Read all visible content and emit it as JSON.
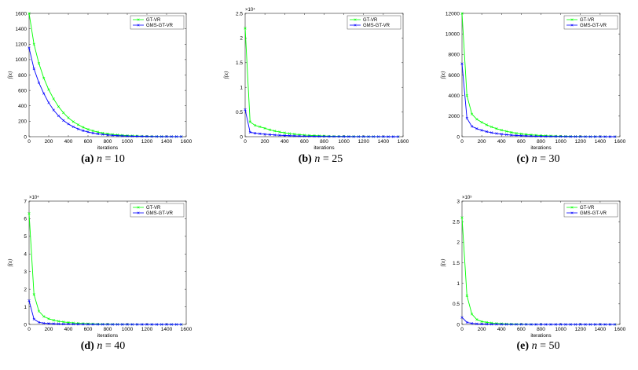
{
  "chart_data": [
    {
      "type": "line",
      "caption": {
        "tag": "(a)",
        "text": "n = 10"
      },
      "xlabel": "iterations",
      "ylabel": "f(x)",
      "xlim": [
        0,
        1600
      ],
      "ylim": [
        0,
        1600
      ],
      "y_exponent": "",
      "xticks": [
        0,
        200,
        400,
        600,
        800,
        1000,
        1200,
        1400,
        1600
      ],
      "yticks": [
        0,
        200,
        400,
        600,
        800,
        1000,
        1200,
        1400,
        1600
      ],
      "legend": "top-right",
      "series": [
        {
          "name": "GT-VR",
          "color": "#00ff00",
          "marker": "x",
          "x": [
            0,
            50,
            100,
            150,
            200,
            250,
            300,
            350,
            400,
            450,
            500,
            550,
            600,
            650,
            700,
            750,
            800,
            850,
            900,
            950,
            1000,
            1050,
            1100,
            1150,
            1200,
            1250,
            1300,
            1350,
            1400,
            1450,
            1500,
            1550
          ],
          "y": [
            1600,
            1200,
            950,
            760,
            610,
            490,
            390,
            310,
            245,
            195,
            155,
            122,
            96,
            76,
            60,
            47,
            37,
            29,
            23,
            18,
            14,
            11,
            9,
            7,
            5,
            4,
            3,
            3,
            2,
            2,
            1,
            1
          ]
        },
        {
          "name": "GMS-GT-VR",
          "color": "#0000ff",
          "marker": "x",
          "x": [
            0,
            50,
            100,
            150,
            200,
            250,
            300,
            350,
            400,
            450,
            500,
            550,
            600,
            650,
            700,
            750,
            800,
            850,
            900,
            950,
            1000,
            1050,
            1100,
            1150,
            1200,
            1250,
            1300,
            1350,
            1400,
            1450,
            1500,
            1550
          ],
          "y": [
            1150,
            880,
            700,
            560,
            440,
            345,
            270,
            210,
            165,
            128,
            100,
            78,
            61,
            47,
            37,
            29,
            22,
            17,
            13,
            10,
            8,
            6,
            5,
            4,
            3,
            2,
            2,
            1,
            1,
            1,
            1,
            1
          ]
        }
      ]
    },
    {
      "type": "line",
      "caption": {
        "tag": "(b)",
        "text": "n = 25"
      },
      "xlabel": "iterations",
      "ylabel": "f(x)",
      "xlim": [
        0,
        1600
      ],
      "ylim": [
        0,
        2.5
      ],
      "y_exponent": "×10⁴",
      "xticks": [
        0,
        200,
        400,
        600,
        800,
        1000,
        1200,
        1400,
        1600
      ],
      "yticks": [
        0,
        0.5,
        1,
        1.5,
        2,
        2.5
      ],
      "legend": "top-right",
      "series": [
        {
          "name": "GT-VR",
          "color": "#00ff00",
          "marker": "x",
          "x": [
            0,
            50,
            100,
            150,
            200,
            250,
            300,
            350,
            400,
            450,
            500,
            550,
            600,
            650,
            700,
            750,
            800,
            850,
            900,
            950,
            1000,
            1050,
            1100,
            1150,
            1200,
            1250,
            1300,
            1350,
            1400,
            1450,
            1500,
            1550
          ],
          "y": [
            2.2,
            0.3,
            0.23,
            0.2,
            0.17,
            0.14,
            0.115,
            0.095,
            0.078,
            0.063,
            0.051,
            0.041,
            0.033,
            0.027,
            0.022,
            0.018,
            0.014,
            0.011,
            0.009,
            0.007,
            0.006,
            0.005,
            0.004,
            0.003,
            0.002,
            0.002,
            0.002,
            0.001,
            0.001,
            0.001,
            0.001,
            0.001
          ]
        },
        {
          "name": "GMS-GT-VR",
          "color": "#0000ff",
          "marker": "x",
          "x": [
            0,
            50,
            100,
            150,
            200,
            250,
            300,
            350,
            400,
            450,
            500,
            550,
            600,
            650,
            700,
            750,
            800,
            850,
            900,
            950,
            1000,
            1050,
            1100,
            1150,
            1200,
            1250,
            1300,
            1350,
            1400,
            1450,
            1500,
            1550
          ],
          "y": [
            0.55,
            0.09,
            0.07,
            0.06,
            0.05,
            0.042,
            0.035,
            0.029,
            0.024,
            0.02,
            0.016,
            0.013,
            0.011,
            0.009,
            0.007,
            0.006,
            0.005,
            0.004,
            0.003,
            0.003,
            0.002,
            0.002,
            0.001,
            0.001,
            0.001,
            0.001,
            0.001,
            0.001,
            0.001,
            0,
            0,
            0
          ]
        }
      ]
    },
    {
      "type": "line",
      "caption": {
        "tag": "(c)",
        "text": "n = 30"
      },
      "xlabel": "iterations",
      "ylabel": "f(x)",
      "xlim": [
        0,
        1600
      ],
      "ylim": [
        0,
        12000
      ],
      "y_exponent": "",
      "xticks": [
        0,
        200,
        400,
        600,
        800,
        1000,
        1200,
        1400,
        1600
      ],
      "yticks": [
        0,
        2000,
        4000,
        6000,
        8000,
        10000,
        12000
      ],
      "legend": "top-right",
      "series": [
        {
          "name": "GT-VR",
          "color": "#00ff00",
          "marker": "x",
          "x": [
            0,
            50,
            100,
            150,
            200,
            250,
            300,
            350,
            400,
            450,
            500,
            550,
            600,
            650,
            700,
            750,
            800,
            850,
            900,
            950,
            1000,
            1050,
            1100,
            1150,
            1200,
            1250,
            1300,
            1350,
            1400,
            1450,
            1500,
            1550
          ],
          "y": [
            12000,
            4000,
            2200,
            1700,
            1400,
            1150,
            950,
            780,
            640,
            520,
            420,
            340,
            275,
            220,
            178,
            143,
            115,
            92,
            74,
            59,
            47,
            38,
            30,
            24,
            19,
            15,
            12,
            10,
            8,
            6,
            5,
            4
          ]
        },
        {
          "name": "GMS-GT-VR",
          "color": "#0000ff",
          "marker": "x",
          "x": [
            0,
            50,
            100,
            150,
            200,
            250,
            300,
            350,
            400,
            450,
            500,
            550,
            600,
            650,
            700,
            750,
            800,
            850,
            900,
            950,
            1000,
            1050,
            1100,
            1150,
            1200,
            1250,
            1300,
            1350,
            1400,
            1450,
            1500,
            1550
          ],
          "y": [
            7100,
            1800,
            1000,
            780,
            620,
            490,
            390,
            310,
            245,
            195,
            154,
            122,
            96,
            76,
            60,
            47,
            37,
            29,
            23,
            18,
            14,
            11,
            9,
            7,
            5,
            4,
            3,
            3,
            2,
            2,
            1,
            1
          ]
        }
      ]
    },
    {
      "type": "line",
      "caption": {
        "tag": "(d)",
        "text": "n = 40"
      },
      "xlabel": "iterations",
      "ylabel": "f(x)",
      "xlim": [
        0,
        1600
      ],
      "ylim": [
        0,
        7
      ],
      "y_exponent": "×10⁴",
      "xticks": [
        0,
        200,
        400,
        600,
        800,
        1000,
        1200,
        1400,
        1600
      ],
      "yticks": [
        0,
        1,
        2,
        3,
        4,
        5,
        6,
        7
      ],
      "legend": "top-right",
      "series": [
        {
          "name": "GT-VR",
          "color": "#00ff00",
          "marker": "x",
          "x": [
            0,
            50,
            100,
            150,
            200,
            250,
            300,
            350,
            400,
            450,
            500,
            550,
            600,
            650,
            700,
            750,
            800,
            850,
            900,
            950,
            1000,
            1050,
            1100,
            1150,
            1200,
            1250,
            1300,
            1350,
            1400,
            1450,
            1500,
            1550
          ],
          "y": [
            6.3,
            1.7,
            0.75,
            0.45,
            0.32,
            0.24,
            0.18,
            0.14,
            0.11,
            0.085,
            0.066,
            0.052,
            0.041,
            0.032,
            0.025,
            0.02,
            0.016,
            0.012,
            0.01,
            0.008,
            0.006,
            0.005,
            0.004,
            0.003,
            0.002,
            0.002,
            0.001,
            0.001,
            0.001,
            0.001,
            0.001,
            0
          ]
        },
        {
          "name": "GMS-GT-VR",
          "color": "#0000ff",
          "marker": "x",
          "x": [
            0,
            50,
            100,
            150,
            200,
            250,
            300,
            350,
            400,
            450,
            500,
            550,
            600,
            650,
            700,
            750,
            800,
            850,
            900,
            950,
            1000,
            1050,
            1100,
            1150,
            1200,
            1250,
            1300,
            1350,
            1400,
            1450,
            1500,
            1550
          ],
          "y": [
            1.35,
            0.3,
            0.12,
            0.07,
            0.05,
            0.04,
            0.03,
            0.024,
            0.019,
            0.015,
            0.012,
            0.009,
            0.007,
            0.006,
            0.005,
            0.004,
            0.003,
            0.002,
            0.002,
            0.001,
            0.001,
            0.001,
            0.001,
            0,
            0,
            0,
            0,
            0,
            0,
            0,
            0,
            0
          ]
        }
      ]
    },
    {
      "type": "line",
      "caption": {
        "tag": "(e)",
        "text": "n = 50"
      },
      "xlabel": "iterations",
      "ylabel": "f(x)",
      "xlim": [
        0,
        1600
      ],
      "ylim": [
        0,
        3
      ],
      "y_exponent": "×10⁵",
      "xticks": [
        0,
        200,
        400,
        600,
        800,
        1000,
        1200,
        1400,
        1600
      ],
      "yticks": [
        0,
        0.5,
        1,
        1.5,
        2,
        2.5,
        3
      ],
      "legend": "top-right",
      "series": [
        {
          "name": "GT-VR",
          "color": "#00ff00",
          "marker": "x",
          "x": [
            0,
            50,
            100,
            150,
            200,
            250,
            300,
            350,
            400,
            450,
            500,
            550,
            600,
            650,
            700,
            750,
            800,
            850,
            900,
            950,
            1000,
            1050,
            1100,
            1150,
            1200,
            1250,
            1300,
            1350,
            1400,
            1450,
            1500,
            1550
          ],
          "y": [
            2.6,
            0.7,
            0.25,
            0.12,
            0.07,
            0.05,
            0.035,
            0.025,
            0.018,
            0.013,
            0.01,
            0.007,
            0.005,
            0.004,
            0.003,
            0.002,
            0.002,
            0.001,
            0.001,
            0.001,
            0.001,
            0,
            0,
            0,
            0,
            0,
            0,
            0,
            0,
            0,
            0,
            0
          ]
        },
        {
          "name": "GMS-GT-VR",
          "color": "#0000ff",
          "marker": "x",
          "x": [
            0,
            50,
            100,
            150,
            200,
            250,
            300,
            350,
            400,
            450,
            500,
            550,
            600,
            650,
            700,
            750,
            800,
            850,
            900,
            950,
            1000,
            1050,
            1100,
            1150,
            1200,
            1250,
            1300,
            1350,
            1400,
            1450,
            1500,
            1550
          ],
          "y": [
            0.17,
            0.05,
            0.025,
            0.015,
            0.01,
            0.007,
            0.005,
            0.004,
            0.003,
            0.002,
            0.002,
            0.001,
            0.001,
            0.001,
            0,
            0,
            0,
            0,
            0,
            0,
            0,
            0,
            0,
            0,
            0,
            0,
            0,
            0,
            0,
            0,
            0,
            0
          ]
        }
      ]
    }
  ]
}
